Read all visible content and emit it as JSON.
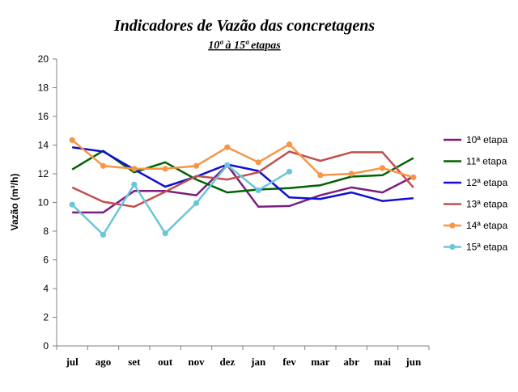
{
  "chart_data": {
    "type": "line",
    "title": "Indicadores de Vazão das concretagens",
    "subtitle": "10ª à 15ª etapas",
    "xlabel": "",
    "ylabel": "Vazão (m³/h)",
    "ylim": [
      0,
      20
    ],
    "yticks": [
      0,
      2,
      4,
      6,
      8,
      10,
      12,
      14,
      16,
      18,
      20
    ],
    "grid": false,
    "legend_position": "right",
    "categories": [
      "jul",
      "ago",
      "set",
      "out",
      "nov",
      "dez",
      "jan",
      "fev",
      "mar",
      "abr",
      "mai",
      "jun"
    ],
    "series": [
      {
        "name": "10ª etapa",
        "color": "#7b1f7f",
        "marker": false,
        "values": [
          9.3,
          9.3,
          10.8,
          10.8,
          10.5,
          12.6,
          9.7,
          9.75,
          10.5,
          11.05,
          10.7,
          11.8
        ]
      },
      {
        "name": "11ª etapa",
        "color": "#006400",
        "marker": false,
        "values": [
          12.3,
          13.6,
          12.1,
          12.8,
          11.6,
          10.7,
          10.9,
          11.0,
          11.2,
          11.8,
          11.9,
          13.1
        ]
      },
      {
        "name": "12ª etapa",
        "color": "#1010d0",
        "marker": false,
        "values": [
          13.85,
          13.55,
          12.3,
          11.1,
          11.8,
          12.65,
          12.2,
          10.35,
          10.25,
          10.7,
          10.1,
          10.3
        ]
      },
      {
        "name": "13ª etapa",
        "color": "#c0504d",
        "marker": false,
        "values": [
          11.05,
          10.05,
          9.7,
          10.75,
          11.85,
          11.6,
          12.1,
          13.55,
          12.9,
          13.5,
          13.5,
          11.05
        ]
      },
      {
        "name": "14ª etapa",
        "color": "#f79646",
        "marker": true,
        "values": [
          14.35,
          12.55,
          12.35,
          12.35,
          12.55,
          13.85,
          12.8,
          14.05,
          11.9,
          12.0,
          12.4,
          11.75
        ]
      },
      {
        "name": "15ª etapa",
        "color": "#6cc5d9",
        "marker": true,
        "values": [
          9.85,
          7.75,
          11.25,
          7.85,
          9.95,
          12.6,
          10.85,
          12.15,
          null,
          null,
          null,
          null
        ]
      }
    ]
  }
}
